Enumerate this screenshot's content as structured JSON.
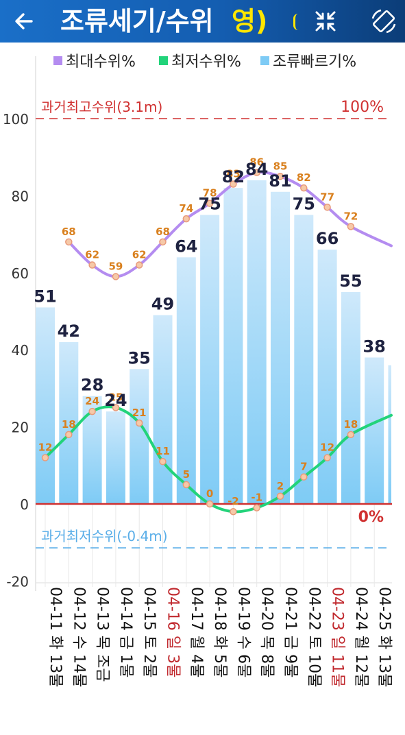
{
  "appbar": {
    "title": "조류세기/수위",
    "title_overflow": "영)",
    "back_icon": "arrow-left-icon",
    "collapse_icon": "collapse-arrows-icon",
    "rotate_icon": "screen-rotation-icon",
    "background": "#1a6fc8"
  },
  "chart_data": {
    "type": "bar+line",
    "categories": [
      "04-11",
      "04-12",
      "04-13",
      "04-14",
      "04-15",
      "04-16",
      "04-17",
      "04-18",
      "04-19",
      "04-20",
      "04-21",
      "04-22",
      "04-23",
      "04-24",
      "04-25"
    ],
    "category_labels": [
      {
        "date": "04-11",
        "weekday": "화",
        "tide": "13물",
        "holiday": false
      },
      {
        "date": "04-12",
        "weekday": "수",
        "tide": "14물",
        "holiday": false
      },
      {
        "date": "04-13",
        "weekday": "목",
        "tide": "조금",
        "holiday": false
      },
      {
        "date": "04-14",
        "weekday": "금",
        "tide": "1물",
        "holiday": false
      },
      {
        "date": "04-15",
        "weekday": "토",
        "tide": "2물",
        "holiday": false
      },
      {
        "date": "04-16",
        "weekday": "일",
        "tide": "3물",
        "holiday": true
      },
      {
        "date": "04-17",
        "weekday": "월",
        "tide": "4물",
        "holiday": false
      },
      {
        "date": "04-18",
        "weekday": "화",
        "tide": "5물",
        "holiday": false
      },
      {
        "date": "04-19",
        "weekday": "수",
        "tide": "6물",
        "holiday": false
      },
      {
        "date": "04-20",
        "weekday": "목",
        "tide": "8물",
        "holiday": false
      },
      {
        "date": "04-21",
        "weekday": "금",
        "tide": "9물",
        "holiday": false
      },
      {
        "date": "04-22",
        "weekday": "토",
        "tide": "10물",
        "holiday": false
      },
      {
        "date": "04-23",
        "weekday": "일",
        "tide": "11물",
        "holiday": true
      },
      {
        "date": "04-24",
        "weekday": "월",
        "tide": "12물",
        "holiday": false
      },
      {
        "date": "04-25",
        "weekday": "화",
        "tide": "13물",
        "holiday": false
      }
    ],
    "series": [
      {
        "name": "최대수위%",
        "kind": "line",
        "color": "#b48cf0",
        "values": [
          null,
          68,
          62,
          59,
          62,
          68,
          74,
          78,
          83,
          86,
          85,
          82,
          77,
          72,
          null
        ],
        "labeled": [
          false,
          true,
          true,
          true,
          true,
          true,
          true,
          true,
          true,
          true,
          true,
          true,
          true,
          true,
          false
        ],
        "trail_end": 67
      },
      {
        "name": "최저수위%",
        "kind": "line",
        "color": "#22d37a",
        "values": [
          12,
          18,
          24,
          25,
          21,
          11,
          5,
          0,
          -2,
          -1,
          2,
          7,
          12,
          18,
          null
        ],
        "labeled": [
          true,
          true,
          true,
          true,
          true,
          true,
          true,
          true,
          true,
          true,
          true,
          true,
          true,
          true,
          false
        ],
        "trail_end": 23
      },
      {
        "name": "조류빠르기%",
        "kind": "bar",
        "color": "#7ecbf5",
        "values": [
          51,
          42,
          28,
          24,
          35,
          49,
          64,
          75,
          82,
          84,
          81,
          75,
          66,
          55,
          38
        ],
        "extra_partial_bar": 36
      }
    ],
    "annotations": [
      {
        "label": "과거최고수위(3.1m)",
        "value": 100,
        "right_label": "100%",
        "color": "#d03030",
        "style": "dashed"
      },
      {
        "label": "",
        "value": 0,
        "right_label": "0%",
        "color": "#d03030",
        "style": "solid"
      },
      {
        "label": "과거최저수위(-0.4m)",
        "value": -11.4,
        "right_label": "",
        "color": "#5aaee8",
        "style": "dashed"
      }
    ],
    "yticks": [
      100,
      80,
      60,
      40,
      20,
      0,
      -20
    ],
    "ylim": [
      -20,
      115
    ],
    "grid": false,
    "legend": "top-right",
    "title": "",
    "xlabel": "",
    "ylabel": ""
  }
}
